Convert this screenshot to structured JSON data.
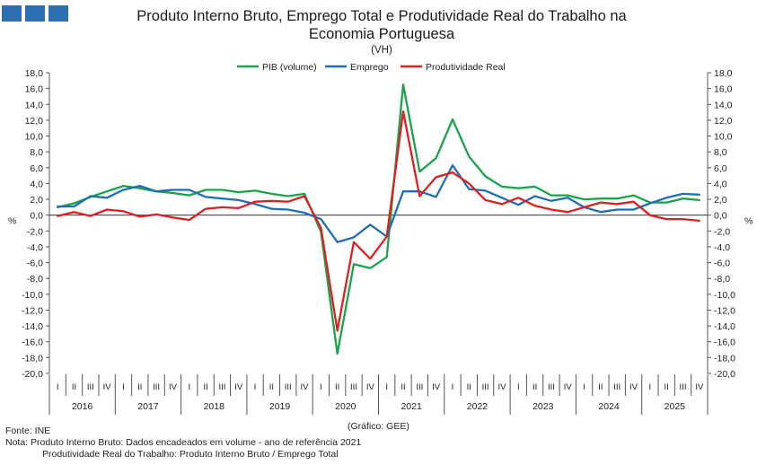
{
  "header": {
    "title_line1": "Produto Interno Bruto, Emprego Total e Produtividade Real do Trabalho na",
    "title_line2": "Economia Portuguesa",
    "subtitle": "(VH)"
  },
  "colors": {
    "pib": "#1aa34a",
    "emprego": "#1f6db5",
    "produtividade": "#e02020",
    "axis": "#555555"
  },
  "footer": {
    "source": "Fonte: INE",
    "note1": "Nota: Produto Interno Bruto: Dados encadeados em volume - ano de referência 2021",
    "note2": "Produtividade Real do Trabalho: Produto Interno Bruto / Emprego Total",
    "credit": "(Gráfico: GEE)"
  },
  "chart_data": {
    "type": "line",
    "title": "Produto Interno Bruto, Emprego Total e Produtividade Real do Trabalho na Economia Portuguesa",
    "subtitle": "(VH)",
    "ylabel": "%",
    "ylabel_right": "%",
    "ylim": [
      -20,
      18
    ],
    "ytick_step": 2,
    "ytick_labels": [
      "18,0",
      "16,0",
      "14,0",
      "12,0",
      "10,0",
      "8,0",
      "6,0",
      "4,0",
      "2,0",
      "0,0",
      "-2,0",
      "-4,0",
      "-6,0",
      "-8,0",
      "-10,0",
      "-12,0",
      "-14,0",
      "-16,0",
      "-18,0",
      "-20,0"
    ],
    "years": [
      "2016",
      "2017",
      "2018",
      "2019",
      "2020",
      "2021",
      "2022",
      "2023",
      "2024",
      "2025"
    ],
    "quarter_labels": [
      "I",
      "II",
      "III",
      "IV"
    ],
    "legend_position": "top-center",
    "series": [
      {
        "name": "PIB (volume)",
        "color": "#1aa34a",
        "values": [
          1.0,
          1.5,
          2.3,
          3.0,
          3.7,
          3.4,
          3.0,
          2.8,
          2.5,
          3.2,
          3.2,
          2.9,
          3.1,
          2.7,
          2.4,
          2.7,
          -2.1,
          -17.5,
          -6.2,
          -6.7,
          -5.3,
          16.5,
          5.5,
          7.2,
          12.1,
          7.4,
          4.9,
          3.6,
          3.4,
          3.6,
          2.5,
          2.5,
          2.0,
          2.1,
          2.1,
          2.5,
          1.6,
          1.6,
          2.1,
          1.9
        ]
      },
      {
        "name": "Emprego",
        "color": "#1f6db5",
        "values": [
          1.1,
          1.1,
          2.4,
          2.2,
          3.2,
          3.7,
          3.0,
          3.2,
          3.2,
          2.3,
          2.1,
          1.9,
          1.4,
          0.8,
          0.7,
          0.3,
          -0.5,
          -3.4,
          -2.8,
          -1.2,
          -2.7,
          3.0,
          3.0,
          2.3,
          6.3,
          3.3,
          3.1,
          2.2,
          1.3,
          2.4,
          1.8,
          2.2,
          1.0,
          0.4,
          0.7,
          0.7,
          1.5,
          2.2,
          2.7,
          2.6
        ]
      },
      {
        "name": "Produtividade Real",
        "color": "#e02020",
        "values": [
          -0.1,
          0.4,
          -0.1,
          0.7,
          0.5,
          -0.2,
          0.1,
          -0.3,
          -0.6,
          0.8,
          1.0,
          0.9,
          1.7,
          1.8,
          1.7,
          2.4,
          -1.6,
          -14.6,
          -3.4,
          -5.5,
          -2.7,
          13.1,
          2.4,
          4.8,
          5.4,
          4.0,
          1.9,
          1.4,
          2.2,
          1.2,
          0.7,
          0.4,
          1.0,
          1.6,
          1.4,
          1.7,
          0.0,
          -0.5,
          -0.5,
          -0.7
        ]
      }
    ]
  }
}
